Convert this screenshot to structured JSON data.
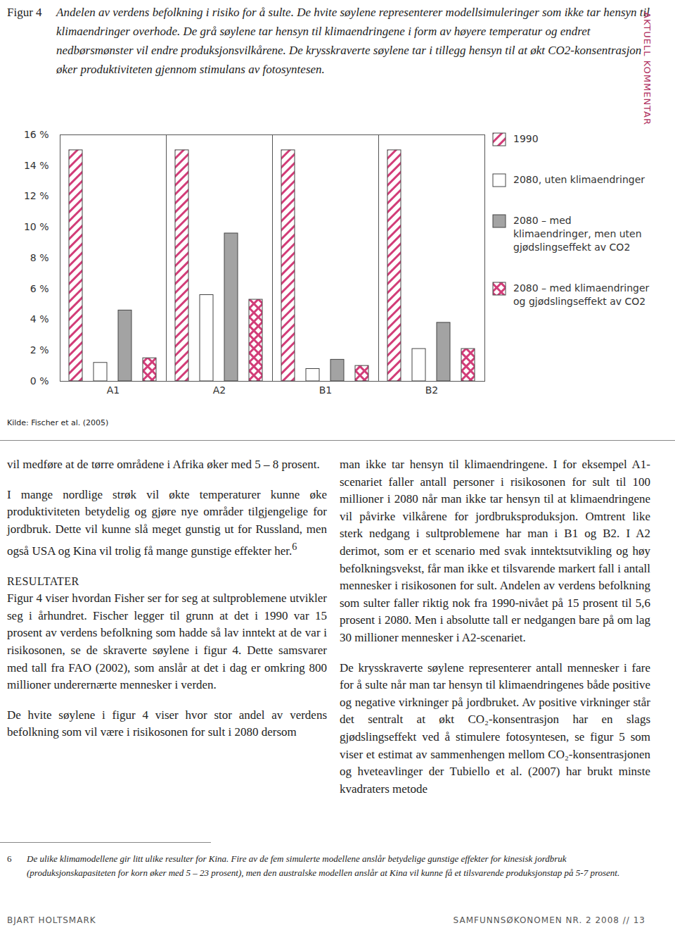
{
  "side_label": "AKTUELL KOMMENTAR",
  "figure": {
    "label": "Figur 4",
    "caption": "Andelen av verdens befolkning i risiko for å sulte. De hvite søylene representerer modellsimuleringer som ikke tar hensyn til klimaendringer overhode. De grå søylene tar hensyn til klimaendringene i form av høyere temperatur og endret nedbørsmønster vil endre produksjonsvilkårene. De krysskraverte søylene tar i tillegg hensyn til at økt CO2-konsentrasjon øker produktiviteten gjennom stimulans av fotosyntesen.",
    "source": "Kilde: Fischer et al. (2005)"
  },
  "chart_data": {
    "type": "bar",
    "categories": [
      "A1",
      "A2",
      "B1",
      "B2"
    ],
    "series": [
      {
        "name": "1990",
        "color": "#d23c78",
        "line_style": "diagonal",
        "values": [
          15,
          15,
          15,
          15
        ]
      },
      {
        "name": "2080, uten klimaendringer",
        "color": "#ffffff",
        "values": [
          1.2,
          5.6,
          0.8,
          2.1
        ]
      },
      {
        "name": "2080 – med klimaendringer, men uten gjødslingseffekt av CO2",
        "color": "#a3a3a3",
        "values": [
          4.6,
          9.6,
          1.4,
          3.8
        ]
      },
      {
        "name": "2080 – med klimaendringer og gjødslingseffekt av CO2",
        "color": "#d23c78",
        "line_style": "crosshatch",
        "values": [
          1.5,
          5.3,
          1.0,
          2.1
        ]
      }
    ],
    "ylim": [
      0,
      16
    ],
    "yticks": [
      {
        "value": 0,
        "label": "0 %"
      },
      {
        "value": 2,
        "label": "2 %"
      },
      {
        "value": 4,
        "label": "4 %"
      },
      {
        "value": 6,
        "label": "6 %"
      },
      {
        "value": 8,
        "label": "8 %"
      },
      {
        "value": 10,
        "label": "10 %"
      },
      {
        "value": 12,
        "label": "12 %"
      },
      {
        "value": 14,
        "label": "14 %"
      },
      {
        "value": 16,
        "label": "16 %"
      }
    ],
    "grid": false,
    "legend": "right"
  },
  "columns": [
    [
      {
        "text": "vil medføre at de tørre områdene i Afrika øker med 5 – 8 prosent."
      },
      {
        "text": "I mange nordlige strøk vil økte temperaturer kunne øke produktiviteten betydelig og gjøre nye områder tilgjengelige for jordbruk. Dette vil kunne slå meget gunstig ut for Russland, men også USA og Kina vil trolig få mange gunstige effekter her.",
        "note": "6"
      },
      {
        "heading": "RESULTATER",
        "text": "Figur 4 viser hvordan Fisher ser for seg at sultproblemene utvikler seg i århundret. Fischer legger til grunn at det i 1990 var 15 prosent av verdens befolkning som hadde så lav inntekt at de var i risikosonen, se de skraverte søylene i figur 4. Dette samsvarer med tall fra FAO (2002), som anslår at det i dag er omkring 800 millioner underernærte mennesker i verden."
      },
      {
        "text": "De hvite søylene i figur 4 viser hvor stor andel av verdens befolkning som vil være i risikosonen for sult i 2080 dersom"
      }
    ],
    [
      {
        "text": "man ikke tar hensyn til klimaendringene. I for eksempel A1-scenariet faller antall personer i risikosonen for sult til 100 millioner i 2080 når man ikke tar hensyn til at klimaendringene vil påvirke vilkårene for jordbruksproduksjon. Omtrent like sterk nedgang i sultproblemene har man i B1 og B2. I A2 derimot, som er et scenario med svak inntektsutvikling og høy befolkningsvekst, får man ikke et tilsvarende markert fall i antall mennesker i risikosonen for sult. Andelen av verdens befolkning som sulter faller riktig nok fra 1990-nivået på 15 prosent til 5,6 prosent i 2080. Men i absolutte tall er nedgangen bare på om lag 30 millioner mennesker i A2-scenariet."
      },
      {
        "text": "De krysskraverte søylene representerer antall mennesker i fare for å sulte når man tar hensyn til klimaendringenes både positive og negative virkninger på jordbruket. Av positive virkninger står det sentralt at økt CO₂-konsentrasjon har en slags gjødslingseffekt ved å stimulere fotosyntesen, se figur 5 som viser et estimat av sammenhengen mellom CO₂-konsentrasjonen og hveteavlinger der Tubiello et al. (2007) har brukt minste kvadraters metode"
      }
    ]
  ],
  "footnote": {
    "mark": "6",
    "text": "De ulike klimamodellene gir litt ulike resulter for Kina. Fire av de fem simulerte modellene anslår betydelige gunstige effekter for kinesisk jordbruk (produksjonskapasiteten for korn øker med 5 – 23 prosent), men den australske modellen anslår at Kina vil kunne få et tilsvarende produksjonstap på 5-7 prosent."
  },
  "footer": {
    "left": "BJART HOLTSMARK",
    "right": "SAMFUNNSØKONOMEN NR. 2 2008 // 13"
  }
}
